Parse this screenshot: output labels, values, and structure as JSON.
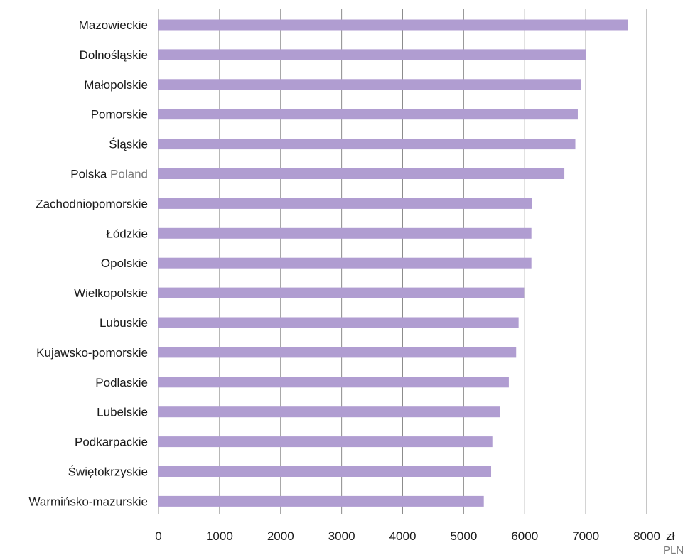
{
  "chart_data": {
    "type": "bar",
    "orientation": "horizontal",
    "categories": [
      {
        "label": "Mazowieckie",
        "sub": ""
      },
      {
        "label": "Dolnośląskie",
        "sub": ""
      },
      {
        "label": "Małopolskie",
        "sub": ""
      },
      {
        "label": "Pomorskie",
        "sub": ""
      },
      {
        "label": "Śląskie",
        "sub": ""
      },
      {
        "label": "Polska",
        "sub": "Poland"
      },
      {
        "label": "Zachodniopomorskie",
        "sub": ""
      },
      {
        "label": "Łódzkie",
        "sub": ""
      },
      {
        "label": "Opolskie",
        "sub": ""
      },
      {
        "label": "Wielkopolskie",
        "sub": ""
      },
      {
        "label": "Lubuskie",
        "sub": ""
      },
      {
        "label": "Kujawsko-pomorskie",
        "sub": ""
      },
      {
        "label": "Podlaskie",
        "sub": ""
      },
      {
        "label": "Lubelskie",
        "sub": ""
      },
      {
        "label": "Podkarpackie",
        "sub": ""
      },
      {
        "label": "Świętokrzyskie",
        "sub": ""
      },
      {
        "label": "Warmińsko-mazurskie",
        "sub": ""
      }
    ],
    "values": [
      7690,
      7000,
      6920,
      6870,
      6830,
      6650,
      6120,
      6110,
      6110,
      5990,
      5900,
      5860,
      5740,
      5600,
      5470,
      5450,
      5330
    ],
    "xlim": [
      0,
      8000
    ],
    "xticks": [
      "0",
      "1000",
      "2000",
      "3000",
      "4000",
      "5000",
      "6000",
      "7000",
      "8000"
    ],
    "unit": "zł",
    "unit_sub": "PLN",
    "grid": true,
    "colors": {
      "bar": "#b09dd1",
      "grid": "#8c8c8c"
    }
  }
}
